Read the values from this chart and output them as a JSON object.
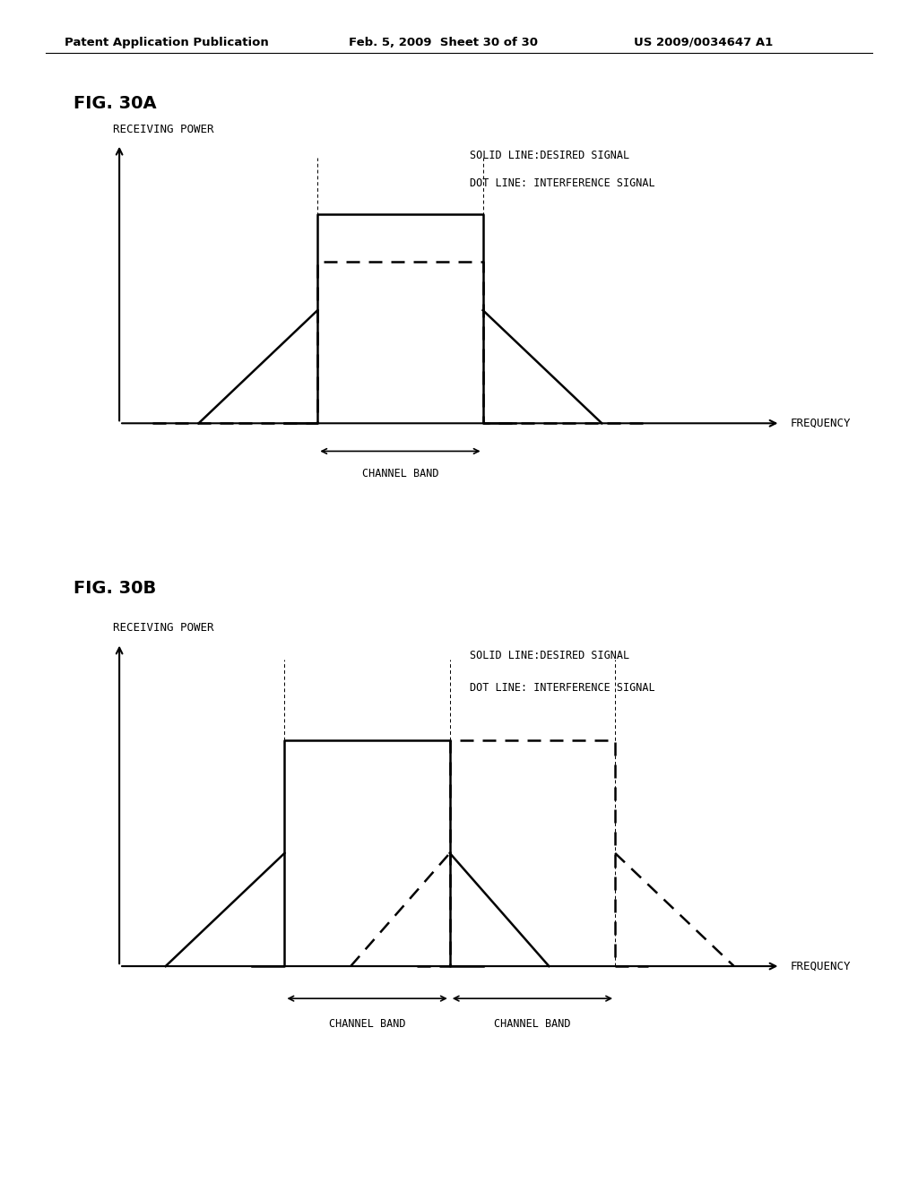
{
  "background_color": "#ffffff",
  "header_left": "Patent Application Publication",
  "header_mid": "Feb. 5, 2009  Sheet 30 of 30",
  "header_right": "US 2009/0034647 A1",
  "fig30a_label": "FIG. 30A",
  "fig30b_label": "FIG. 30B",
  "ylabel": "RECEIVING POWER",
  "xlabel": "FREQUENCY",
  "legend_line1": "SOLID LINE:DESIRED SIGNAL",
  "legend_line2": "DOT LINE: INTERFERENCE SIGNAL",
  "channel_band_label": "CHANNEL BAND",
  "header_fontsize": 9.5,
  "fig_label_fontsize": 14,
  "axis_label_fontsize": 9,
  "legend_fontsize": 8.5,
  "channel_fontsize": 8.5
}
